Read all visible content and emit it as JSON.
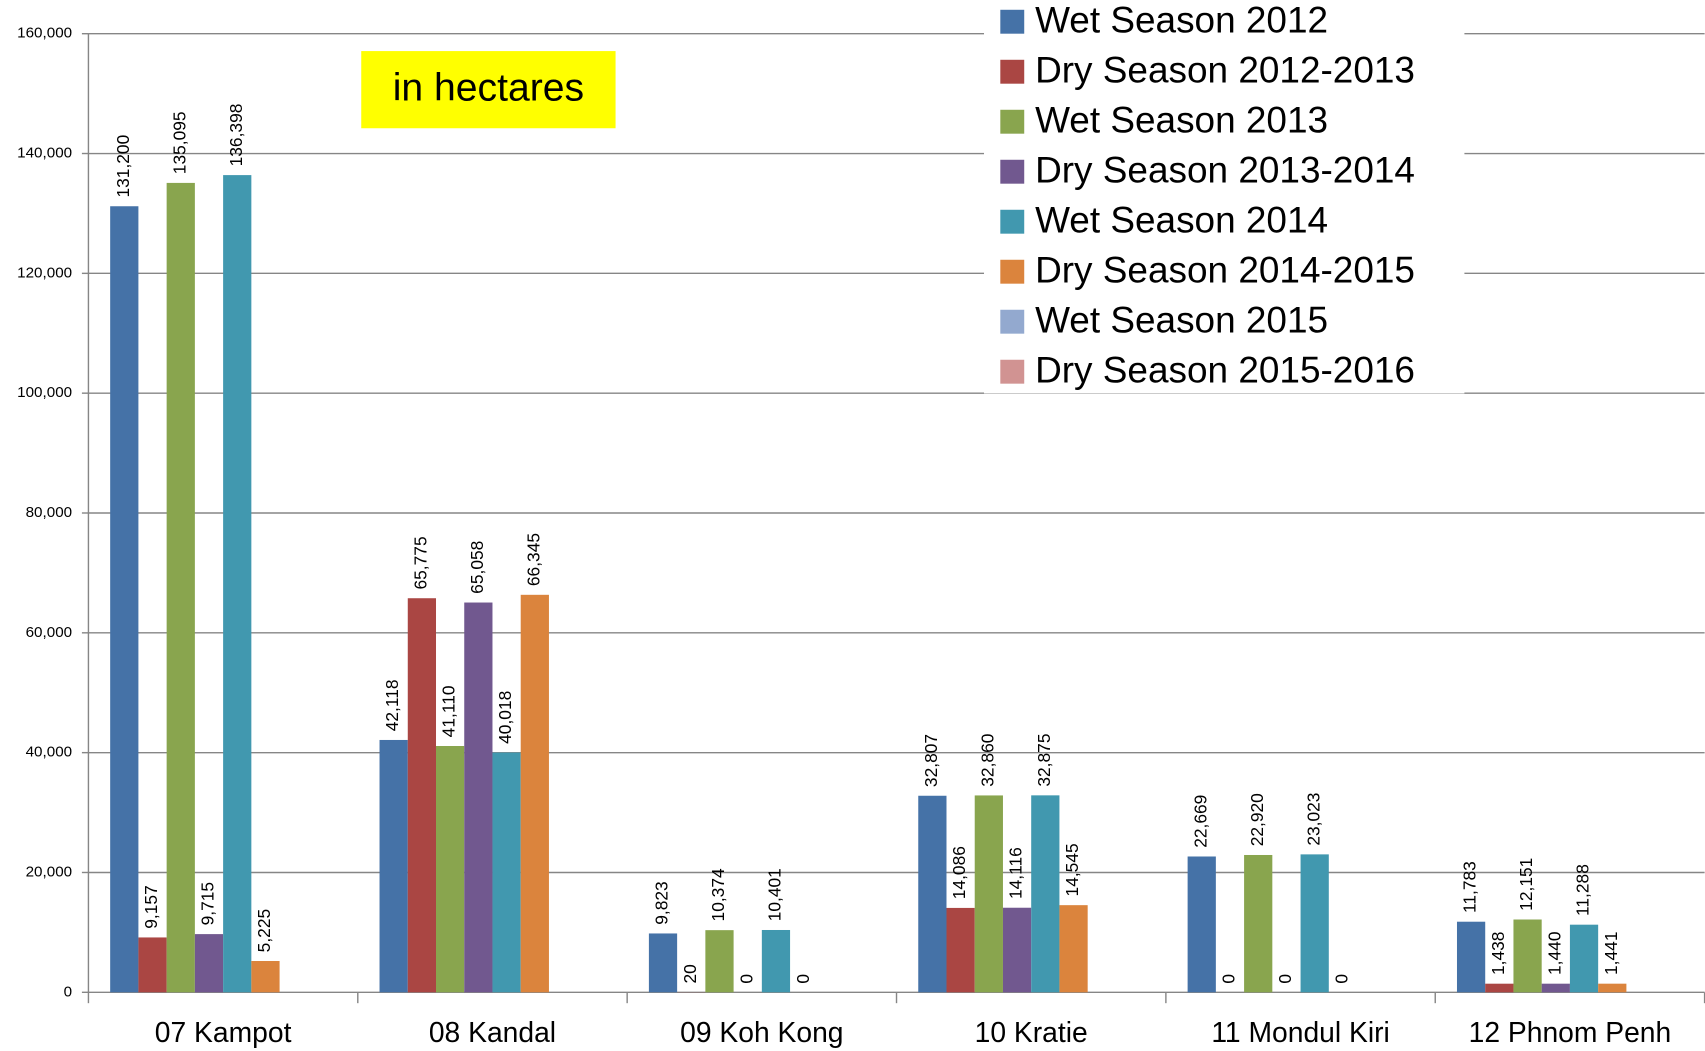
{
  "chart_data": {
    "type": "bar",
    "annotation": "in hectares",
    "categories": [
      "07 Kampot",
      "08 Kandal",
      "09 Koh Kong",
      "10 Kratie",
      "11 Mondul Kiri",
      "12 Phnom Penh"
    ],
    "series": [
      {
        "name": "Wet Season 2012",
        "color": "#4572a7",
        "values": [
          131200,
          42118,
          9823,
          32807,
          22669,
          11783
        ],
        "value_labels": [
          "131,200",
          "42,118",
          "9,823",
          "32,807",
          "22,669",
          "11,783"
        ]
      },
      {
        "name": "Dry Season 2012-2013",
        "color": "#aa4643",
        "values": [
          9157,
          65775,
          20,
          14086,
          0,
          1438
        ],
        "value_labels": [
          "9,157",
          "65,775",
          "20",
          "14,086",
          "0",
          "1,438"
        ]
      },
      {
        "name": "Wet Season 2013",
        "color": "#89a54e",
        "values": [
          135095,
          41110,
          10374,
          32860,
          22920,
          12151
        ],
        "value_labels": [
          "135,095",
          "41,110",
          "10,374",
          "32,860",
          "22,920",
          "12,151"
        ]
      },
      {
        "name": "Dry Season 2013-2014",
        "color": "#71588f",
        "values": [
          9715,
          65058,
          0,
          14116,
          0,
          1440
        ],
        "value_labels": [
          "9,715",
          "65,058",
          "0",
          "14,116",
          "0",
          "1,440"
        ]
      },
      {
        "name": "Wet Season 2014",
        "color": "#4198af",
        "values": [
          136398,
          40018,
          10401,
          32875,
          23023,
          11288
        ],
        "value_labels": [
          "136,398",
          "40,018",
          "10,401",
          "32,875",
          "23,023",
          "11,288"
        ]
      },
      {
        "name": "Dry Season 2014-2015",
        "color": "#db843d",
        "values": [
          5225,
          66345,
          0,
          14545,
          0,
          1441
        ],
        "value_labels": [
          "5,225",
          "66,345",
          "0",
          "14,545",
          "0",
          "1,441"
        ]
      },
      {
        "name": "Wet Season 2015",
        "color": "#93a9cf",
        "values": [
          null,
          null,
          null,
          null,
          null,
          null
        ]
      },
      {
        "name": "Dry Season 2015-2016",
        "color": "#d19392",
        "values": [
          null,
          null,
          null,
          null,
          null,
          null
        ]
      }
    ],
    "ylim": [
      0,
      160000
    ],
    "yticks": [
      0,
      {
        "value": 20000,
        "label": "20,000"
      },
      {
        "value": 40000,
        "label": "40,000"
      },
      {
        "value": 60000,
        "label": "60,000"
      },
      {
        "value": 80000,
        "label": "80,000"
      },
      {
        "value": 100000,
        "label": "100,000"
      },
      {
        "value": 120000,
        "label": "120,000"
      },
      {
        "value": 140000,
        "label": "140,000"
      },
      {
        "value": 160000,
        "label": "160,000"
      }
    ],
    "grid": true,
    "legend": "top-right"
  }
}
